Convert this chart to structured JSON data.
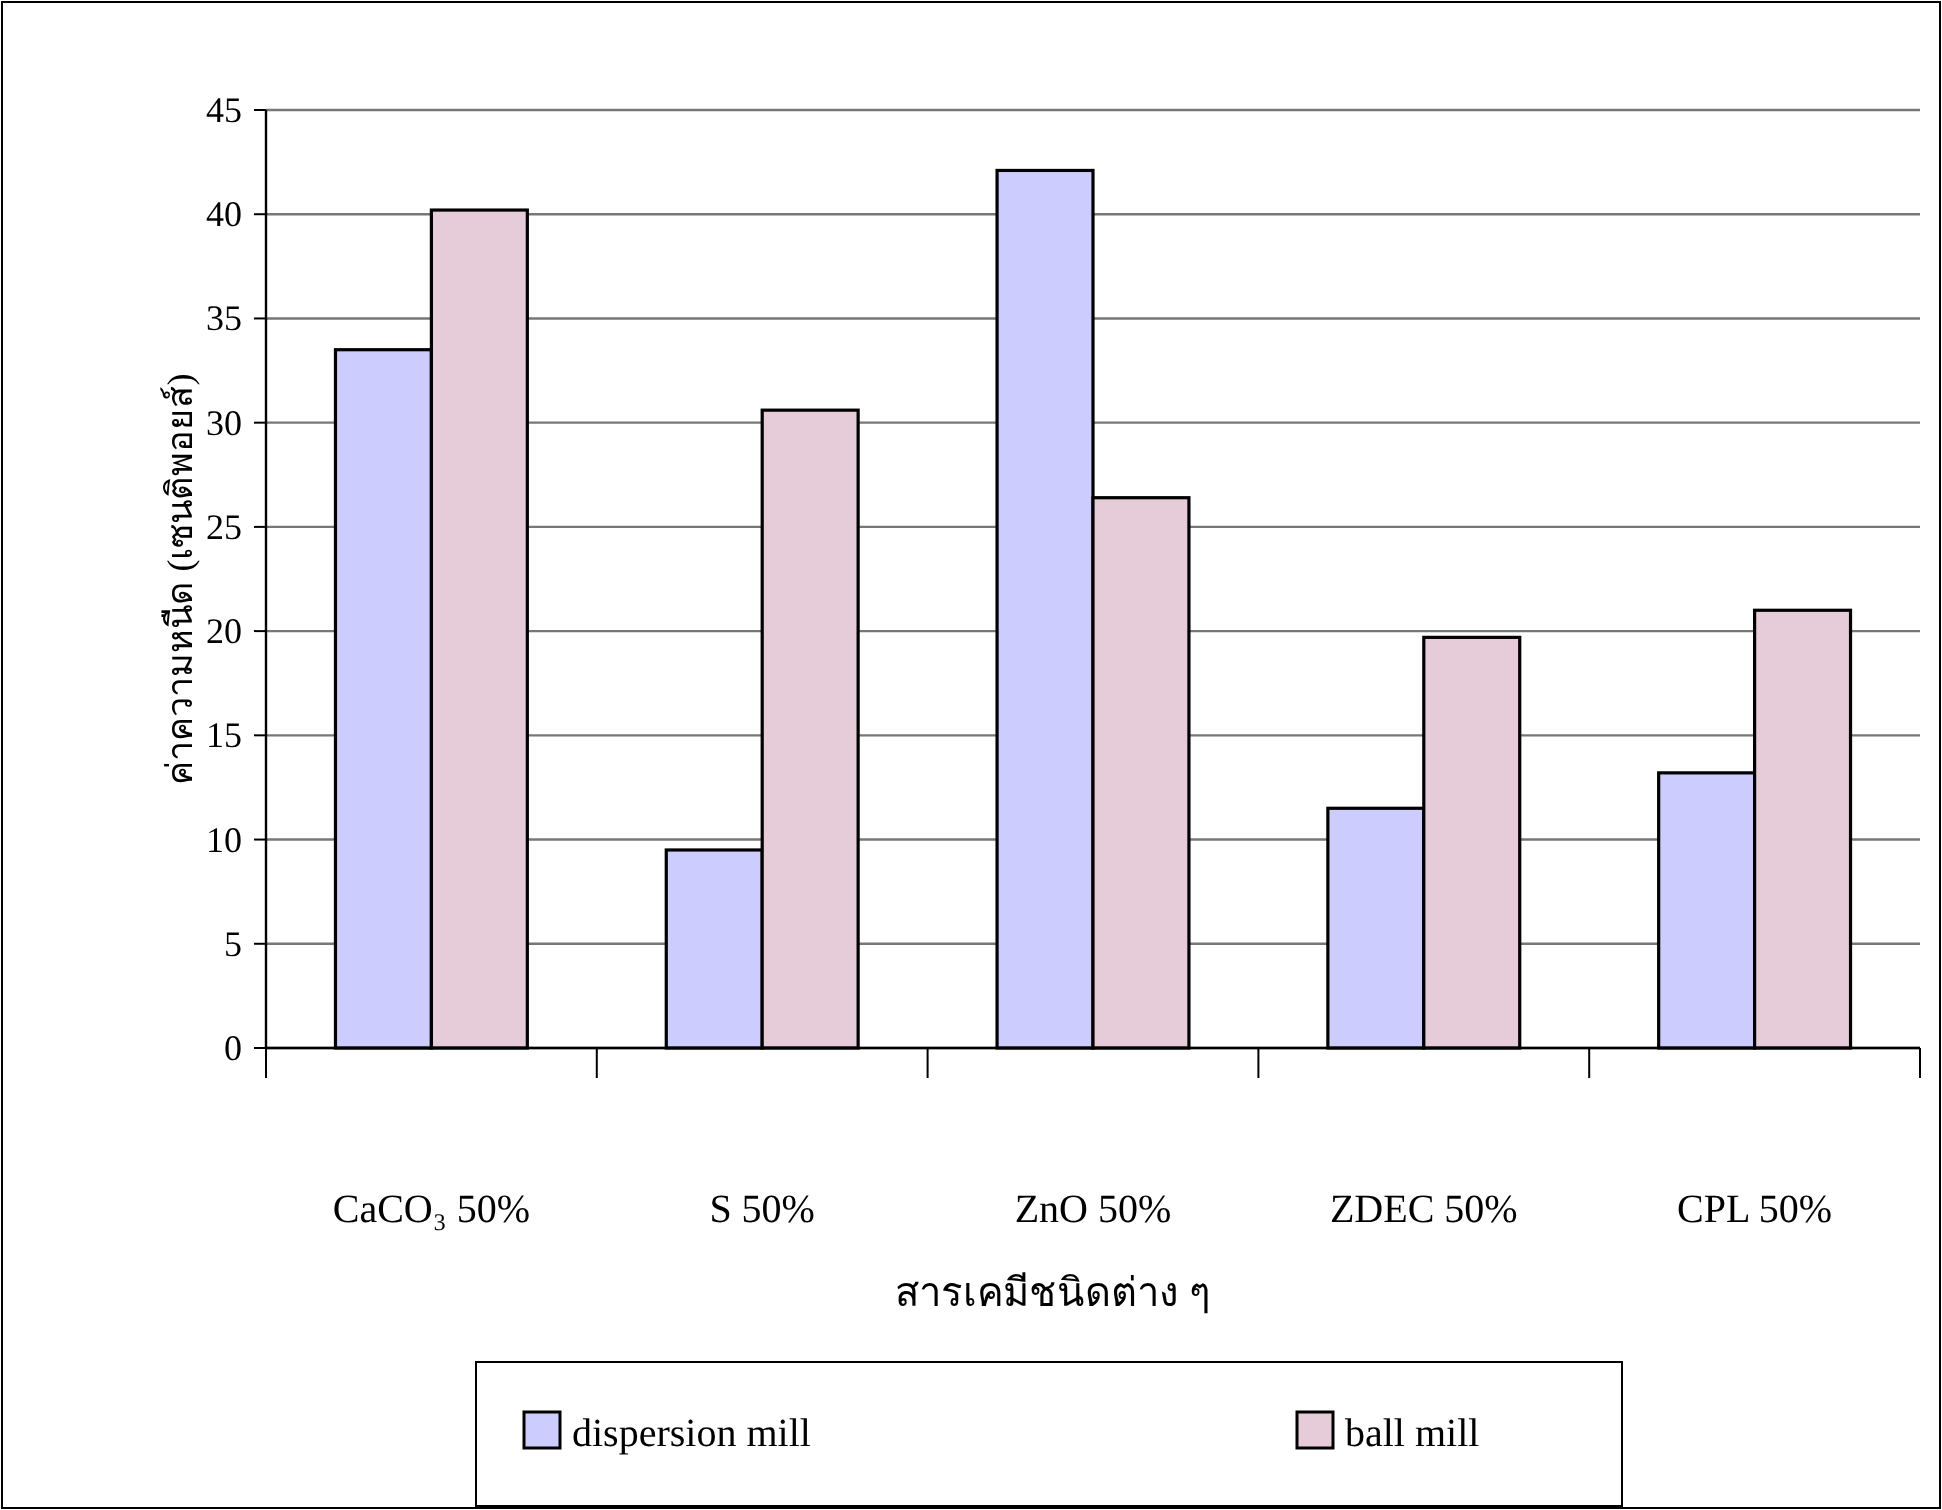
{
  "chart_data": {
    "type": "bar",
    "xlabel": "สารเคมีชนิดต่าง ๆ",
    "ylabel": "ค่าความหนืด (เซนติพอยส์)",
    "categories": [
      "CaCO₃ 50%",
      "S 50%",
      "ZnO 50%",
      "ZDEC 50%",
      "CPL 50%"
    ],
    "series": [
      {
        "name": "dispersion mill",
        "color": "#ccccff",
        "values": [
          33.5,
          9.5,
          42.1,
          11.5,
          13.2
        ]
      },
      {
        "name": "ball mill",
        "color": "#e6cbd9",
        "values": [
          40.2,
          30.6,
          26.4,
          19.7,
          21.0
        ]
      }
    ],
    "ylim": [
      0,
      45
    ],
    "yticks": [
      0,
      5,
      10,
      15,
      20,
      25,
      30,
      35,
      40,
      45
    ],
    "grid": "y",
    "legend": "bottom"
  }
}
